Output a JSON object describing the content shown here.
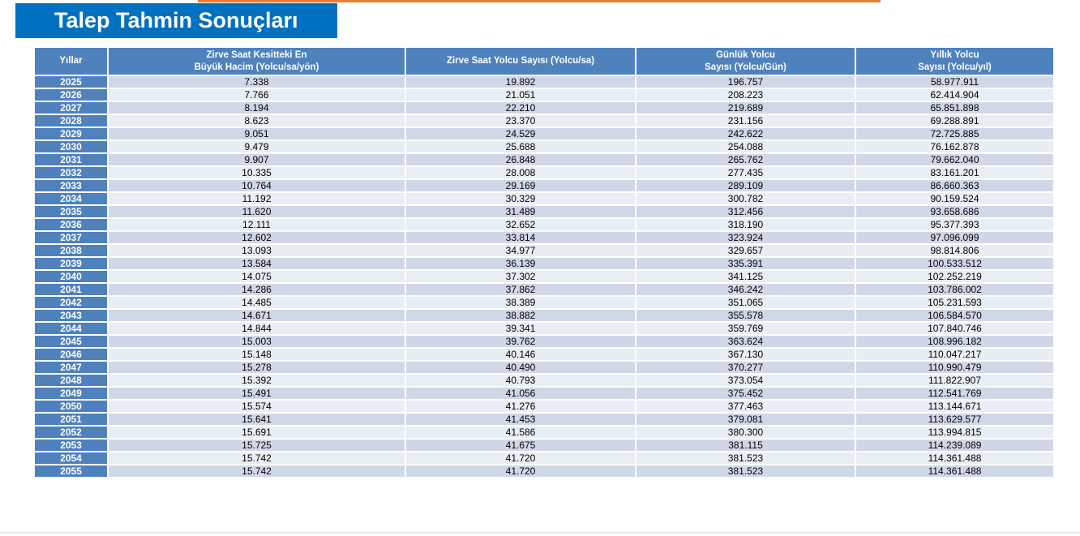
{
  "title": "Talep Tahmin Sonuçları",
  "colors": {
    "title_bg": "#0070c0",
    "accent": "#ed7d31",
    "header_bg": "#4f81bd",
    "row_odd": "#d0d8e8",
    "row_even": "#e9edf4"
  },
  "table": {
    "headers": [
      {
        "line1": "Yıllar",
        "line2": ""
      },
      {
        "line1": "Zirve Saat Kesitteki En",
        "line2": "Büyük Hacim (Yolcu/sa/yön)"
      },
      {
        "line1": "Zirve Saat Yolcu Sayısı (Yolcu/sa)",
        "line2": ""
      },
      {
        "line1": "Günlük Yolcu",
        "line2": "Sayısı (Yolcu/Gün)"
      },
      {
        "line1": "Yıllık Yolcu",
        "line2": "Sayısı (Yolcu/yıl)"
      }
    ],
    "rows": [
      [
        "2025",
        "7.338",
        "19.892",
        "196.757",
        "58.977.911"
      ],
      [
        "2026",
        "7.766",
        "21.051",
        "208.223",
        "62.414.904"
      ],
      [
        "2027",
        "8.194",
        "22.210",
        "219.689",
        "65.851.898"
      ],
      [
        "2028",
        "8.623",
        "23.370",
        "231.156",
        "69.288.891"
      ],
      [
        "2029",
        "9.051",
        "24.529",
        "242.622",
        "72.725.885"
      ],
      [
        "2030",
        "9.479",
        "25.688",
        "254.088",
        "76.162.878"
      ],
      [
        "2031",
        "9.907",
        "26.848",
        "265.762",
        "79.662.040"
      ],
      [
        "2032",
        "10.335",
        "28.008",
        "277.435",
        "83.161.201"
      ],
      [
        "2033",
        "10.764",
        "29.169",
        "289.109",
        "86.660.363"
      ],
      [
        "2034",
        "11.192",
        "30.329",
        "300.782",
        "90.159.524"
      ],
      [
        "2035",
        "11.620",
        "31.489",
        "312.456",
        "93.658.686"
      ],
      [
        "2036",
        "12.111",
        "32.652",
        "318.190",
        "95.377.393"
      ],
      [
        "2037",
        "12.602",
        "33.814",
        "323.924",
        "97.096.099"
      ],
      [
        "2038",
        "13.093",
        "34.977",
        "329.657",
        "98.814.806"
      ],
      [
        "2039",
        "13.584",
        "36.139",
        "335.391",
        "100.533.512"
      ],
      [
        "2040",
        "14.075",
        "37.302",
        "341.125",
        "102.252.219"
      ],
      [
        "2041",
        "14.286",
        "37.862",
        "346.242",
        "103.786.002"
      ],
      [
        "2042",
        "14.485",
        "38.389",
        "351.065",
        "105.231.593"
      ],
      [
        "2043",
        "14.671",
        "38.882",
        "355.578",
        "106.584.570"
      ],
      [
        "2044",
        "14.844",
        "39.341",
        "359.769",
        "107.840.746"
      ],
      [
        "2045",
        "15.003",
        "39.762",
        "363.624",
        "108.996.182"
      ],
      [
        "2046",
        "15.148",
        "40.146",
        "367.130",
        "110.047.217"
      ],
      [
        "2047",
        "15.278",
        "40.490",
        "370.277",
        "110.990.479"
      ],
      [
        "2048",
        "15.392",
        "40.793",
        "373.054",
        "111.822.907"
      ],
      [
        "2049",
        "15.491",
        "41.056",
        "375.452",
        "112.541.769"
      ],
      [
        "2050",
        "15.574",
        "41.276",
        "377.463",
        "113.144.671"
      ],
      [
        "2051",
        "15.641",
        "41.453",
        "379.081",
        "113.629.577"
      ],
      [
        "2052",
        "15.691",
        "41.586",
        "380.300",
        "113.994.815"
      ],
      [
        "2053",
        "15.725",
        "41.675",
        "381.115",
        "114.239.089"
      ],
      [
        "2054",
        "15.742",
        "41.720",
        "381.523",
        "114.361.488"
      ],
      [
        "2055",
        "15.742",
        "41.720",
        "381.523",
        "114.361.488"
      ]
    ]
  }
}
